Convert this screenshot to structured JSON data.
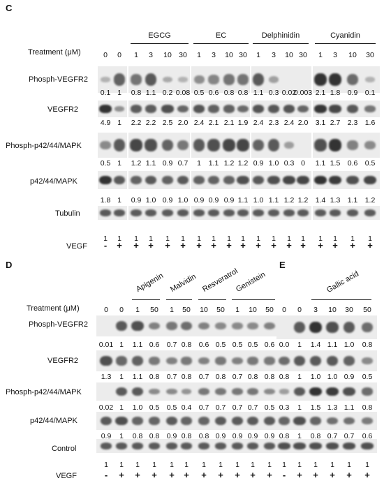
{
  "panelC": {
    "label": "C",
    "groups": [
      "EGCG",
      "EC",
      "Delphinidin",
      "Cyanidin"
    ],
    "treatment_label": "Treatment (μM)",
    "treatment": [
      "0",
      "0",
      "1",
      "3",
      "10",
      "30",
      "1",
      "3",
      "10",
      "30",
      "1",
      "3",
      "10",
      "30",
      "1",
      "3",
      "10",
      "30"
    ],
    "rows": [
      {
        "name": "Phosph-VEGFR2",
        "values": [
          "0.1",
          "1",
          "0.8",
          "1.1",
          "0.2",
          "0.08",
          "0.5",
          "0.6",
          "0.8",
          "0.8",
          "1.1",
          "0.3",
          "0.02",
          "0.003",
          "2.1",
          "1.8",
          "0.9",
          "0.1"
        ]
      },
      {
        "name": "VEGFR2",
        "values": [
          "4.9",
          "1",
          "2.2",
          "2.2",
          "2.5",
          "2.0",
          "2.4",
          "2.1",
          "2.1",
          "1.9",
          "2.4",
          "2.3",
          "2.4",
          "2.0",
          "3.1",
          "2.7",
          "2.3",
          "1.6"
        ]
      },
      {
        "name": "Phosph-p42/44/MAPK",
        "values": [
          "0.5",
          "1",
          "1.2",
          "1.1",
          "0.9",
          "0.7",
          "1",
          "1.1",
          "1.2",
          "1.2",
          "0.9",
          "1.0",
          "0.3",
          "0",
          "1.1",
          "1.5",
          "0.6",
          "0.5"
        ]
      },
      {
        "name": "p42/44/MAPK",
        "values": [
          "1.8",
          "1",
          "0.9",
          "1.0",
          "0.9",
          "1.0",
          "0.9",
          "0.9",
          "0.9",
          "1.1",
          "1.0",
          "1.1",
          "1.2",
          "1.2",
          "1.4",
          "1.3",
          "1.1",
          "1.2"
        ]
      },
      {
        "name": "Tubulin",
        "values": [
          "1",
          "1",
          "1",
          "1",
          "1",
          "1",
          "1",
          "1",
          "1",
          "1",
          "1",
          "1",
          "1",
          "1",
          "1",
          "1",
          "1",
          "1"
        ]
      }
    ],
    "vegf_label": "VEGF",
    "vegf": [
      "-",
      "+",
      "+",
      "+",
      "+",
      "+",
      "+",
      "+",
      "+",
      "+",
      "+",
      "+",
      "+",
      "+",
      "+",
      "+",
      "+",
      "+"
    ]
  },
  "panelD": {
    "label": "D",
    "groups": [
      "Apigenin",
      "Malvidin",
      "Resveratrol",
      "Genistein"
    ],
    "treatment_label": "Treatment (μM)",
    "treatment": [
      "0",
      "0",
      "1",
      "50",
      "1",
      "50",
      "10",
      "50",
      "1",
      "10",
      "50"
    ],
    "rows": [
      {
        "name": "Phosph-VEGFR2",
        "values": [
          "0.01",
          "1",
          "1.1",
          "0.6",
          "0.7",
          "0.8",
          "0.6",
          "0.5",
          "0.5",
          "0.5",
          "0.6"
        ]
      },
      {
        "name": "VEGFR2",
        "values": [
          "1.3",
          "1",
          "1.1",
          "0.8",
          "0.7",
          "0.8",
          "0.7",
          "0.8",
          "0.7",
          "0.8",
          "0.8"
        ]
      },
      {
        "name": "Phosph-p42/44/MAPK",
        "values": [
          "0.02",
          "1",
          "1.0",
          "0.5",
          "0.5",
          "0.4",
          "0.7",
          "0.7",
          "0.7",
          "0.7",
          "0.5"
        ]
      },
      {
        "name": "p42/44/MAPK",
        "values": [
          "0.9",
          "1",
          "0.8",
          "0.8",
          "0.9",
          "0.8",
          "0.8",
          "0.9",
          "0.9",
          "0.9",
          "0.9"
        ]
      },
      {
        "name": "Control",
        "values": [
          "1",
          "1",
          "1",
          "1",
          "1",
          "1",
          "1",
          "1",
          "1",
          "1",
          "1"
        ]
      }
    ],
    "vegf_label": "VEGF",
    "vegf": [
      "-",
      "+",
      "+",
      "+",
      "+",
      "+",
      "+",
      "+",
      "+",
      "+",
      "+"
    ]
  },
  "panelE": {
    "label": "E",
    "groups": [
      "Gallic acid"
    ],
    "treatment": [
      "0",
      "0",
      "3",
      "10",
      "30",
      "50"
    ],
    "rows": [
      {
        "name": "Phosph-VEGFR2",
        "values": [
          "0.0",
          "1",
          "1.4",
          "1.1",
          "1.0",
          "0.8"
        ]
      },
      {
        "name": "VEGFR2",
        "values": [
          "0.8",
          "1",
          "1.0",
          "1.0",
          "0.9",
          "0.5"
        ]
      },
      {
        "name": "Phosph-p42/44/MAPK",
        "values": [
          "0.3",
          "1",
          "1.5",
          "1.3",
          "1.1",
          "0.8"
        ]
      },
      {
        "name": "p42/44/MAPK",
        "values": [
          "0.8",
          "1",
          "0.8",
          "0.7",
          "0.7",
          "0.6"
        ]
      },
      {
        "name": "Control",
        "values": [
          "1",
          "1",
          "1",
          "1",
          "1",
          "1"
        ]
      }
    ],
    "vegf": [
      "-",
      "+",
      "+",
      "+",
      "+",
      "+"
    ]
  }
}
